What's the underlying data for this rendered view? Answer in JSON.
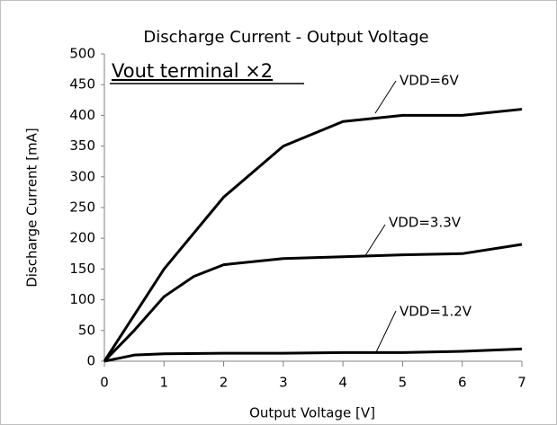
{
  "chart_data": {
    "type": "line",
    "title": "Discharge Current - Output Voltage",
    "annotation": "Vout terminal ×2",
    "xlabel": "Output Voltage [V]",
    "ylabel": "Discharge Current [mA]",
    "xlim": [
      0,
      7
    ],
    "xticks": [
      0,
      1,
      2,
      3,
      4,
      5,
      6,
      7
    ],
    "ylim": [
      0,
      500
    ],
    "yticks": [
      0,
      50,
      100,
      150,
      200,
      250,
      300,
      350,
      400,
      450,
      500
    ],
    "grid": false,
    "series": [
      {
        "name": "VDD=6V",
        "color": "#000000",
        "x": [
          0,
          1,
          2,
          3,
          4,
          5,
          6,
          7
        ],
        "values": [
          0,
          150,
          267,
          350,
          390,
          400,
          400,
          410
        ]
      },
      {
        "name": "VDD=3.3V",
        "color": "#000000",
        "x": [
          0,
          0.5,
          1,
          1.5,
          2,
          3,
          4,
          5,
          6,
          7
        ],
        "values": [
          0,
          50,
          105,
          138,
          157,
          167,
          170,
          173,
          175,
          190
        ]
      },
      {
        "name": "VDD=1.2V",
        "color": "#000000",
        "x": [
          0,
          0.5,
          1,
          2,
          3,
          4,
          5,
          6,
          7
        ],
        "values": [
          0,
          10,
          12,
          13,
          13,
          14,
          14,
          16,
          20
        ]
      }
    ]
  }
}
